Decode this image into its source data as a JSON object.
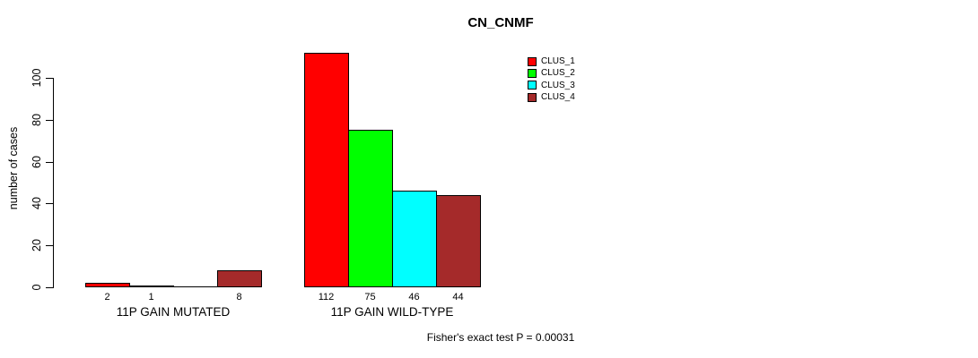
{
  "page": {
    "background_color": "#ffffff",
    "text_color": "#000000"
  },
  "chart_data": {
    "type": "bar",
    "title": "CN_CNMF",
    "xlabel": "",
    "ylabel": "number of cases",
    "groups": [
      "11P GAIN MUTATED",
      "11P GAIN WILD-TYPE"
    ],
    "series": [
      {
        "name": "CLUS_1",
        "color": "#FF0000",
        "values": [
          2,
          112
        ]
      },
      {
        "name": "CLUS_2",
        "color": "#00FF00",
        "values": [
          1,
          75
        ]
      },
      {
        "name": "CLUS_3",
        "color": "#00FFFF",
        "values": [
          0,
          46
        ]
      },
      {
        "name": "CLUS_4",
        "color": "#A52A2A",
        "values": [
          8,
          44
        ]
      }
    ],
    "bar_labels": [
      [
        "2",
        "1",
        "",
        "8"
      ],
      [
        "112",
        "75",
        "46",
        "44"
      ]
    ],
    "y_ticks": [
      0,
      20,
      40,
      60,
      80,
      100
    ],
    "ylim": [
      0,
      112
    ],
    "grid": false,
    "bar_border_color": "#000000",
    "legend_position": "top-right",
    "annotation": "Fisher's exact test P = 0.00031"
  }
}
